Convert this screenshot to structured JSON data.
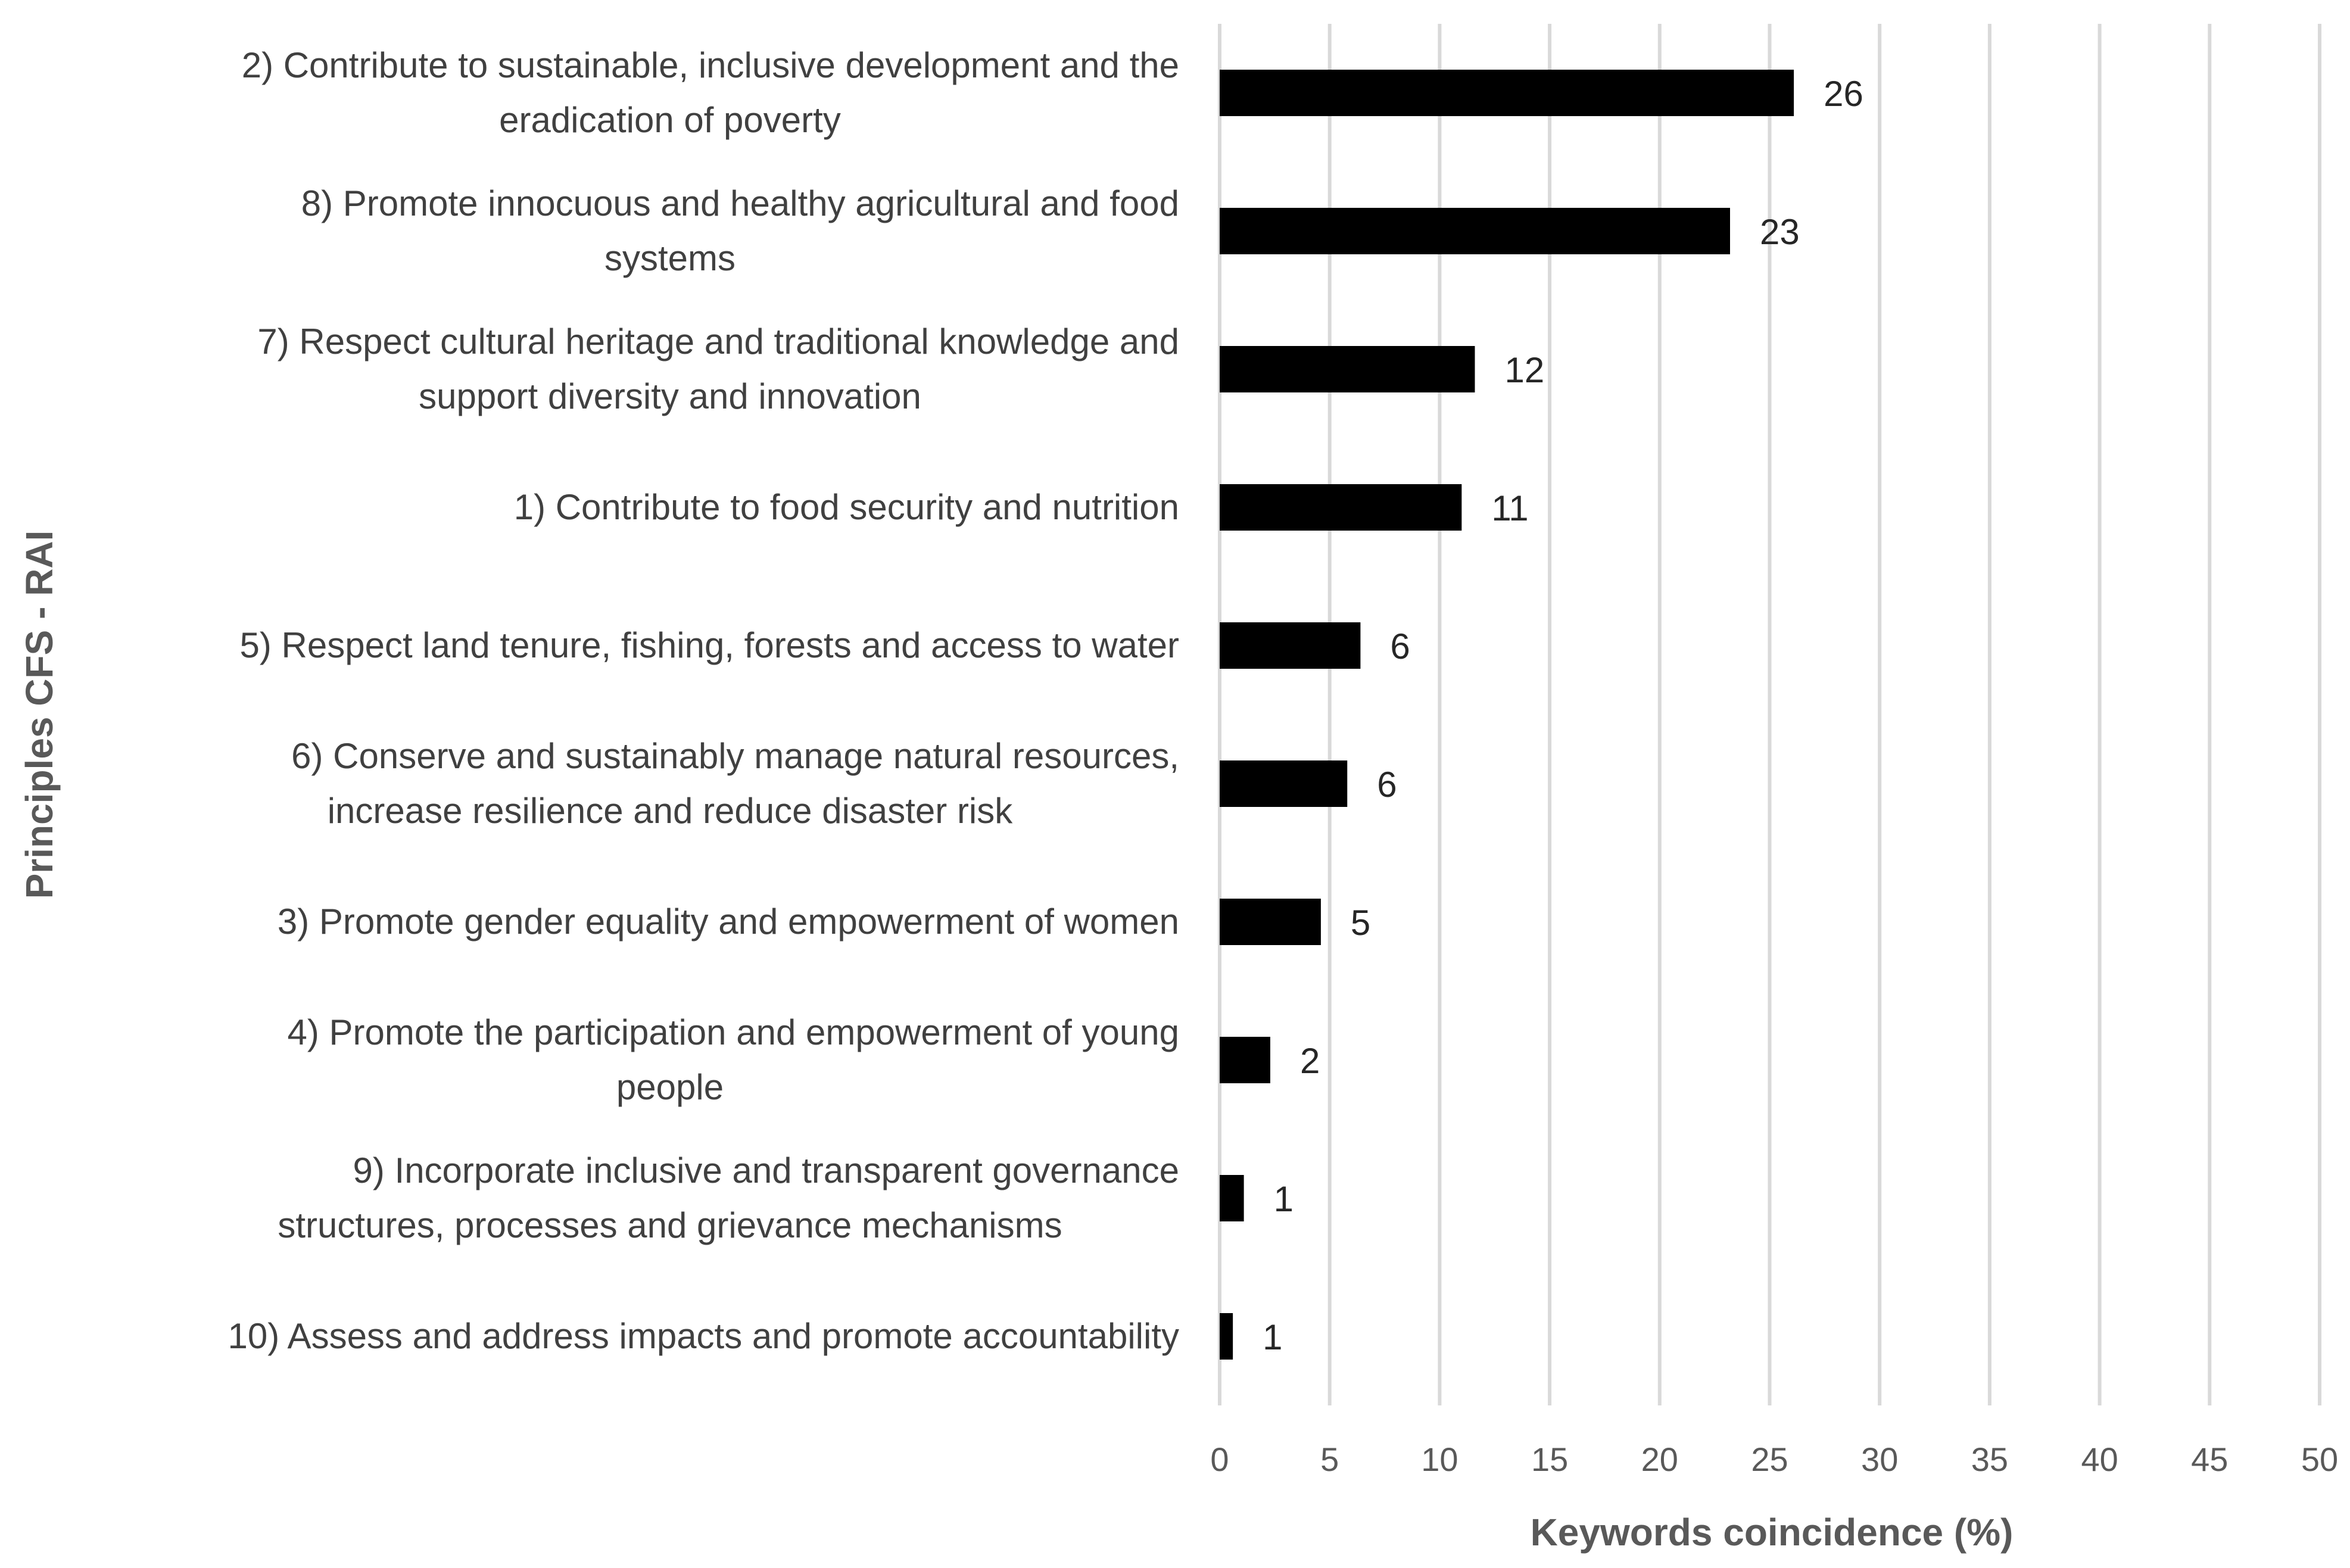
{
  "chart_data": {
    "type": "bar",
    "orientation": "horizontal",
    "title": "",
    "xlabel": "Keywords coincidence (%)",
    "ylabel": "Principles CFS - RAI",
    "xlim": [
      0,
      50
    ],
    "x_ticks": [
      "0",
      "5",
      "10",
      "15",
      "20",
      "25",
      "30",
      "35",
      "40",
      "45",
      "50"
    ],
    "grid": "vertical",
    "legend": "none",
    "bar_color": "#000000",
    "categories": [
      [
        "2) Contribute to sustainable, inclusive development and the",
        "eradication of poverty"
      ],
      [
        "8) Promote innocuous and healthy agricultural and food",
        "systems"
      ],
      [
        "7) Respect cultural heritage and traditional knowledge and",
        "support diversity and innovation"
      ],
      [
        "1) Contribute to food security and nutrition"
      ],
      [
        "5) Respect land tenure, fishing, forests and access to water"
      ],
      [
        "6) Conserve and sustainably manage natural resources,",
        "increase resilience and reduce disaster risk"
      ],
      [
        "3) Promote gender equality and empowerment of women"
      ],
      [
        "4) Promote the participation and empowerment of young",
        "people"
      ],
      [
        "9) Incorporate inclusive and transparent governance",
        "structures, processes and grievance mechanisms"
      ],
      [
        "10) Assess and address impacts and promote accountability"
      ]
    ],
    "values": [
      26.1,
      23.2,
      11.6,
      11.0,
      6.4,
      5.8,
      4.6,
      2.3,
      1.1,
      0.6
    ],
    "data_labels": [
      "26",
      "23",
      "12",
      "11",
      "6",
      "6",
      "5",
      "2",
      "1",
      "1"
    ]
  }
}
